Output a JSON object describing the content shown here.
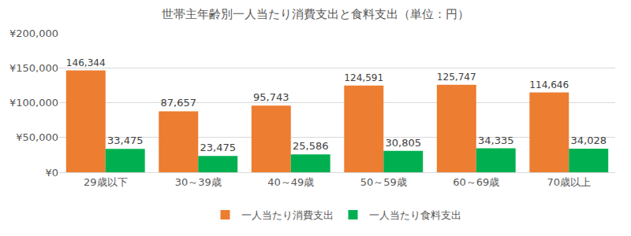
{
  "chart_data": {
    "type": "bar",
    "title": "世帯主年齢別一人当たり消費支出と食料支出（単位：円）",
    "categories": [
      "29歳以下",
      "30～39歳",
      "40～49歳",
      "50～59歳",
      "60～69歳",
      "70歳以上"
    ],
    "series": [
      {
        "name": "一人当たり消費支出",
        "color": "#ED7D31",
        "values": [
          146344,
          87657,
          95743,
          124591,
          125747,
          114646
        ],
        "value_labels": [
          "146,344",
          "87,657",
          "95,743",
          "124,591",
          "125,747",
          "114,646"
        ]
      },
      {
        "name": "一人当たり食料支出",
        "color": "#00B050",
        "values": [
          33475,
          23475,
          25586,
          30805,
          34335,
          34028
        ],
        "value_labels": [
          "33,475",
          "23,475",
          "25,586",
          "30,805",
          "34,335",
          "34,028"
        ]
      }
    ],
    "ylim": [
      0,
      200000
    ],
    "yticks": [
      {
        "value": 0,
        "label": "¥0"
      },
      {
        "value": 50000,
        "label": "¥50,000"
      },
      {
        "value": 100000,
        "label": "¥100,000"
      },
      {
        "value": 150000,
        "label": "¥150,000"
      },
      {
        "value": 200000,
        "label": "¥200,000"
      }
    ],
    "grid": true,
    "legend": "bottom",
    "data_labels": true
  }
}
